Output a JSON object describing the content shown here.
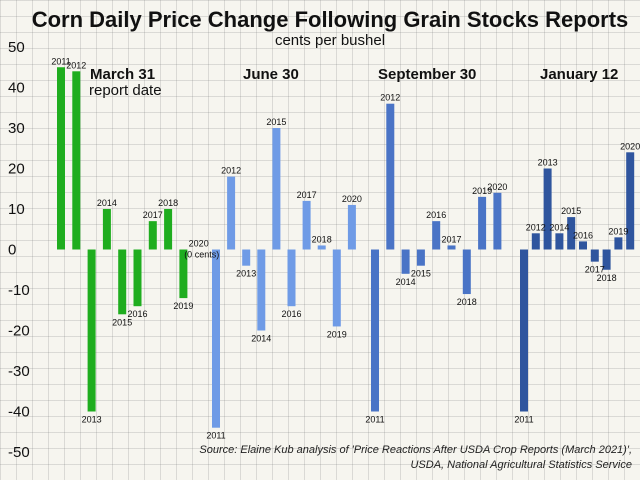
{
  "chart_data": {
    "type": "bar",
    "title": "Corn Daily Price Change Following Grain Stocks Reports",
    "subtitle": "cents per bushel",
    "ylim": [
      -50,
      50
    ],
    "yticks": [
      "50",
      "40",
      "30",
      "20",
      "10",
      "0",
      "-10",
      "-20",
      "-30",
      "-40",
      "-50"
    ],
    "categories": [
      "2011",
      "2012",
      "2013",
      "2014",
      "2015",
      "2016",
      "2017",
      "2018",
      "2019",
      "2020"
    ],
    "groups": [
      {
        "name": "March 31",
        "subtitle": "report date",
        "color": "#1fad1f",
        "values": [
          45,
          44,
          -40,
          10,
          -16,
          -14,
          7,
          10,
          -12,
          0
        ],
        "labels": [
          "2011",
          "2012",
          "2013",
          "2014",
          "2015",
          "2016",
          "2017",
          "2018",
          "2019",
          "2020"
        ],
        "note": "(0 cents)"
      },
      {
        "name": "June 30",
        "subtitle": "",
        "color": "#6f9be6",
        "values": [
          -44,
          18,
          -4,
          -20,
          30,
          -14,
          12,
          1,
          -19,
          11
        ],
        "labels": [
          "2011",
          "2012",
          "2013",
          "2014",
          "2015",
          "2016",
          "2017",
          "2018",
          "2019",
          "2020"
        ],
        "note": ""
      },
      {
        "name": "September 30",
        "subtitle": "",
        "color": "#4a74c6",
        "values": [
          -40,
          36,
          -6,
          -4,
          7,
          1,
          -11,
          13,
          14,
          null
        ],
        "labels": [
          "2011",
          "2012",
          "2014",
          "2015",
          "2016",
          "2017",
          "2018",
          "2019",
          "2020",
          ""
        ],
        "note": ""
      },
      {
        "name": "January 12",
        "subtitle": "",
        "color": "#2f559e",
        "values": [
          -40,
          4,
          20,
          4,
          8,
          2,
          -3,
          -5,
          3,
          24
        ],
        "labels": [
          "2011",
          "2012",
          "2013",
          "2014",
          "2015",
          "2016",
          "2017",
          "2018",
          "2019",
          "2020"
        ],
        "note": ""
      }
    ]
  },
  "source": {
    "line1": "Source: Elaine Kub analysis of 'Price Reactions After USDA Crop Reports (March 2021)',",
    "line2": "USDA, National Agricultural Statistics Service"
  }
}
